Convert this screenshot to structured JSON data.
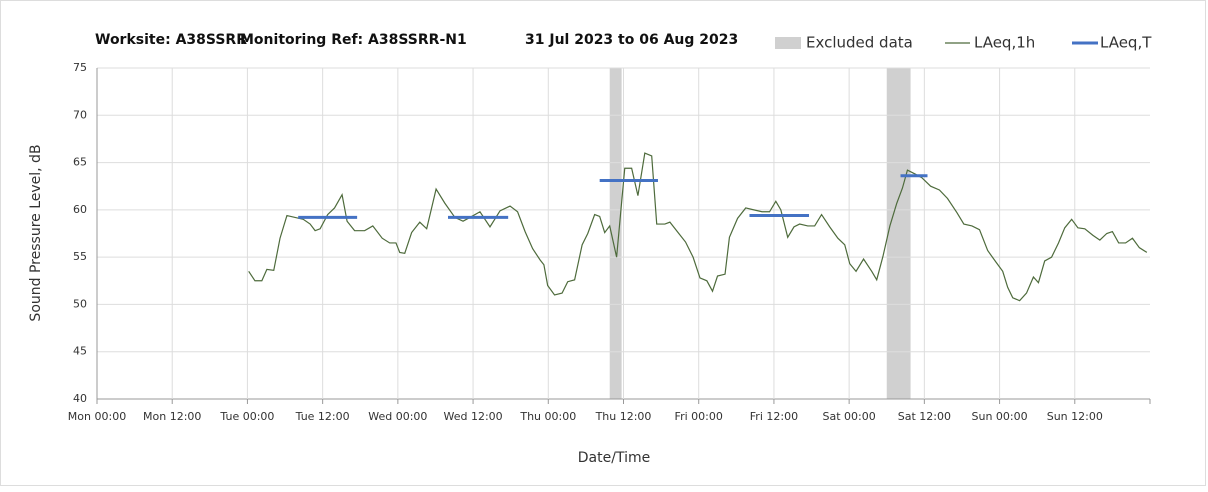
{
  "chart_data": {
    "type": "line",
    "title": [
      "Worksite: A38SSRR",
      "Monitoring Ref: A38SSRR-N1",
      "31 Jul 2023 to 06 Aug 2023"
    ],
    "xlabel": "Date/Time",
    "ylabel": "Sound Pressure Level, dB",
    "xlim": [
      0,
      168
    ],
    "xticks": [
      {
        "value": 0,
        "label": "Mon 00:00"
      },
      {
        "value": 12,
        "label": "Mon 12:00"
      },
      {
        "value": 24,
        "label": "Tue 00:00"
      },
      {
        "value": 36,
        "label": "Tue 12:00"
      },
      {
        "value": 48,
        "label": "Wed 00:00"
      },
      {
        "value": 60,
        "label": "Wed 12:00"
      },
      {
        "value": 72,
        "label": "Thu 00:00"
      },
      {
        "value": 84,
        "label": "Thu 12:00"
      },
      {
        "value": 96,
        "label": "Fri 00:00"
      },
      {
        "value": 108,
        "label": "Fri 12:00"
      },
      {
        "value": 120,
        "label": "Sat 00:00"
      },
      {
        "value": 132,
        "label": "Sat 12:00"
      },
      {
        "value": 144,
        "label": "Sun 00:00"
      },
      {
        "value": 156,
        "label": "Sun 12:00"
      }
    ],
    "ylim": [
      40,
      75
    ],
    "yticks": [
      40,
      45,
      50,
      55,
      60,
      65,
      70,
      75
    ],
    "grid": true,
    "excluded": {
      "name": "Excluded data",
      "color": "#d0d0d0",
      "ranges": [
        [
          81.8,
          83.7
        ],
        [
          126.0,
          129.8
        ]
      ]
    },
    "series": [
      {
        "name": "LAeq,1h",
        "color": "#4e6b3c",
        "x": [
          24.2,
          25.2,
          26.3,
          27.1,
          28.2,
          29.2,
          30.3,
          31.6,
          32.9,
          34.0,
          34.8,
          35.6,
          36.8,
          37.9,
          39.1,
          39.9,
          41.1,
          42.7,
          44.0,
          45.5,
          46.7,
          47.7,
          48.3,
          49.1,
          50.2,
          51.5,
          52.6,
          54.1,
          55.5,
          57.1,
          58.4,
          59.5,
          61.1,
          62.7,
          64.3,
          65.9,
          67.1,
          68.3,
          69.5,
          70.7,
          71.3,
          71.9,
          73.0,
          74.2,
          75.1,
          76.2,
          77.4,
          78.3,
          79.4,
          80.2,
          81.0,
          81.8,
          82.9,
          84.2,
          85.3,
          86.3,
          87.4,
          88.5,
          89.3,
          90.6,
          91.4,
          92.7,
          93.9,
          95.1,
          96.2,
          97.3,
          98.2,
          99.0,
          100.2,
          100.9,
          102.2,
          103.5,
          104.8,
          106.1,
          107.3,
          108.3,
          109.1,
          110.2,
          111.2,
          112.1,
          113.4,
          114.5,
          115.6,
          116.9,
          118.2,
          119.3,
          120.1,
          121.1,
          122.3,
          123.6,
          124.4,
          125.4,
          126.5,
          127.6,
          128.5,
          129.3,
          130.5,
          131.6,
          133.0,
          134.4,
          135.7,
          137.2,
          138.3,
          139.6,
          140.8,
          142.1,
          143.4,
          144.5,
          145.3,
          146.1,
          147.2,
          148.3,
          149.4,
          150.2,
          151.2,
          152.3,
          153.4,
          154.4,
          155.5,
          156.5,
          157.6,
          158.9,
          160.0,
          161.1,
          162.0,
          163.0,
          164.1,
          165.2,
          166.3,
          167.5
        ],
        "values": [
          53.5,
          52.5,
          52.5,
          53.7,
          53.6,
          57,
          59.4,
          59.2,
          59,
          58.5,
          57.8,
          58,
          59.5,
          60.2,
          61.6,
          58.8,
          57.8,
          57.8,
          58.3,
          57,
          56.5,
          56.5,
          55.5,
          55.4,
          57.6,
          58.7,
          58,
          62.2,
          60.7,
          59.2,
          58.8,
          59.2,
          59.8,
          58.2,
          59.9,
          60.4,
          59.8,
          57.7,
          55.9,
          54.7,
          54.2,
          52,
          51,
          51.2,
          52.4,
          52.6,
          56.3,
          57.5,
          59.5,
          59.3,
          57.6,
          58.3,
          55,
          64.4,
          64.4,
          61.5,
          66,
          65.7,
          58.5,
          58.5,
          58.7,
          57.6,
          56.6,
          55,
          52.8,
          52.5,
          51.4,
          53,
          53.2,
          57.1,
          59.1,
          60.2,
          60,
          59.8,
          59.8,
          60.9,
          60,
          57.1,
          58.2,
          58.5,
          58.3,
          58.3,
          59.5,
          58.2,
          57,
          56.3,
          54.3,
          53.5,
          54.8,
          53.5,
          52.6,
          55.1,
          58.3,
          60.7,
          62.3,
          64.2,
          63.8,
          63.4,
          62.5,
          62.1,
          61.2,
          59.7,
          58.5,
          58.3,
          57.9,
          55.7,
          54.5,
          53.5,
          51.8,
          50.7,
          50.4,
          51.2,
          52.9,
          52.3,
          54.6,
          55,
          56.5,
          58.1,
          59,
          58.1,
          58,
          57.3,
          56.8,
          57.5,
          57.7,
          56.5,
          56.5,
          57,
          56,
          55.5
        ]
      },
      {
        "name": "LAeq,T",
        "color": "#4472c4",
        "x": [
          32.1,
          41.5,
          48,
          56.0,
          65.6,
          72,
          80.2,
          89.5,
          96,
          104.1,
          113.6,
          120,
          128.2,
          132.5
        ],
        "values": [
          59.2,
          59.2,
          null,
          59.2,
          59.2,
          null,
          63.1,
          63.1,
          null,
          59.4,
          59.4,
          null,
          63.6,
          63.6
        ]
      }
    ]
  }
}
